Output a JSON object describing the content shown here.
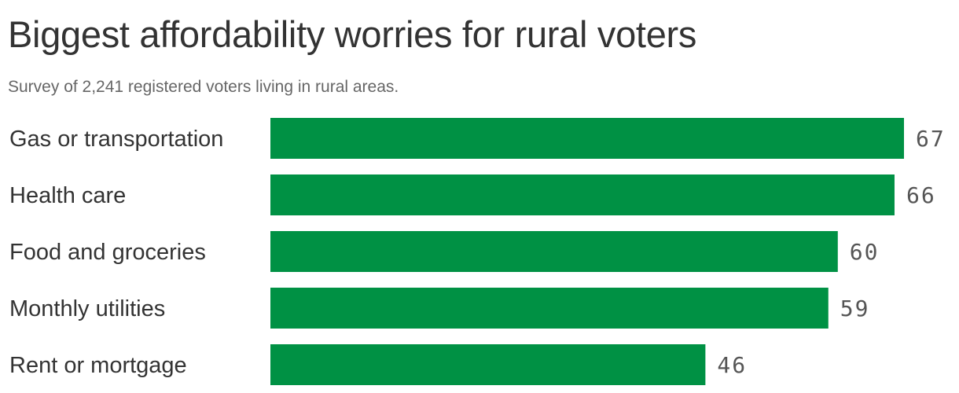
{
  "header": {
    "title": "Biggest affordability worries for rural voters",
    "subtitle": "Survey of 2,241 registered voters living in rural areas."
  },
  "colors": {
    "bar": "#009144"
  },
  "chart_data": {
    "type": "bar",
    "orientation": "horizontal",
    "title": "Biggest affordability worries for rural voters",
    "subtitle": "Survey of 2,241 registered voters living in rural areas.",
    "categories": [
      "Gas or transportation",
      "Health care",
      "Food and groceries",
      "Monthly utilities",
      "Rent or mortgage"
    ],
    "values": [
      67,
      66,
      60,
      59,
      46
    ],
    "xlabel": "",
    "ylabel": "",
    "grid": false,
    "legend": "none"
  }
}
